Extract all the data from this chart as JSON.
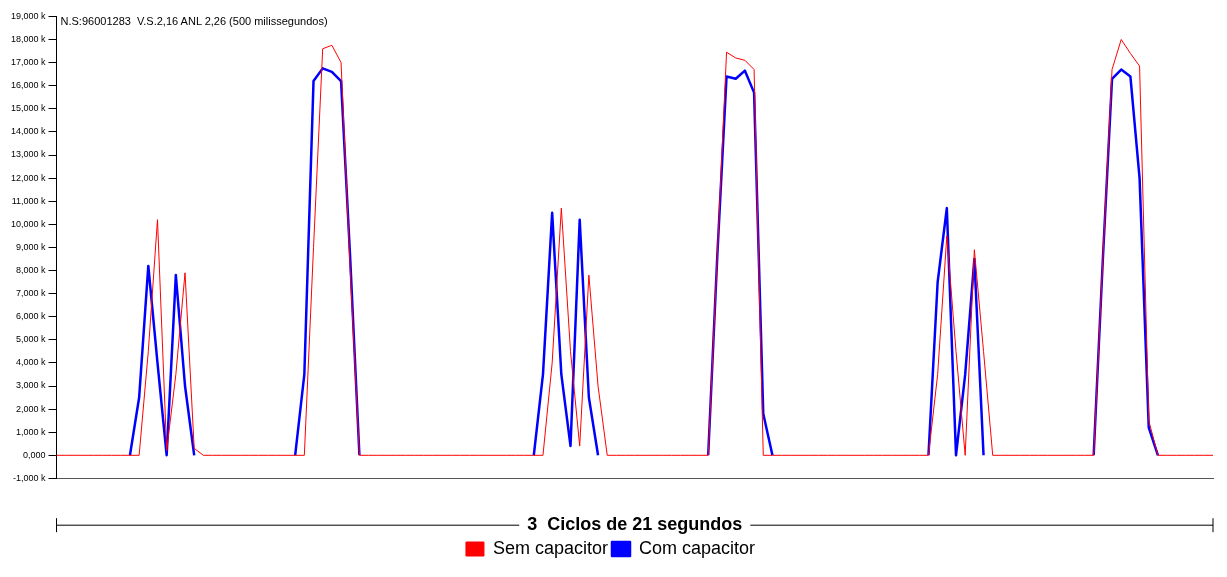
{
  "chart_data": {
    "type": "line",
    "title": "N.S:96001283  V.S.2,16 ANL 2,26 (500 milissegundos)",
    "xlabel": "3  Ciclos de 21 segundos",
    "categories": [
      null,
      null,
      null,
      null,
      null,
      null,
      null,
      null,
      null,
      null,
      null,
      null,
      null,
      null,
      null,
      null,
      null,
      null,
      null,
      null,
      null,
      null,
      null,
      null,
      null,
      null,
      null,
      null,
      null,
      null,
      null,
      null,
      null,
      null,
      null,
      null,
      null,
      null,
      null,
      null,
      null,
      null,
      null,
      null,
      null,
      null,
      null,
      null,
      null,
      null,
      null,
      null,
      null,
      null,
      null,
      null,
      null,
      null,
      null,
      null,
      null,
      null,
      null,
      null,
      null,
      null,
      null,
      null,
      null,
      null,
      null,
      null,
      null,
      null,
      null,
      null,
      null,
      null,
      null,
      null,
      null,
      null,
      null,
      null,
      null,
      null,
      null,
      null,
      null,
      null,
      null,
      null,
      null,
      null,
      null,
      null,
      null,
      null,
      null,
      null,
      null,
      null,
      null,
      null,
      null,
      null,
      null,
      null,
      null,
      null,
      null,
      null,
      null,
      null,
      null,
      null,
      null,
      null,
      null,
      null,
      null,
      null,
      null,
      null,
      null,
      null,
      null
    ],
    "series": [
      {
        "name": "Sem capacitor",
        "color": "#ff0000",
        "values": [
          0,
          0,
          0,
          0,
          0,
          0,
          0,
          0,
          0,
          0,
          4.5,
          10.2,
          0.2,
          3.5,
          7.9,
          0.3,
          0,
          0,
          0,
          0,
          0,
          0,
          0,
          0,
          0,
          0,
          0,
          0,
          9,
          17.6,
          17.75,
          17,
          8,
          0,
          0,
          0,
          0,
          0,
          0,
          0,
          0,
          0,
          0,
          0,
          0,
          0,
          0,
          0,
          0,
          0,
          0,
          0,
          0,
          0,
          4,
          10.7,
          4.5,
          0.4,
          7.8,
          3,
          0,
          0,
          0,
          0,
          0,
          0,
          0,
          0,
          0,
          0,
          0,
          0,
          8.7,
          17.45,
          17.2,
          17.1,
          16.7,
          0,
          0,
          0,
          0,
          0,
          0,
          0,
          0,
          0,
          0,
          0,
          0,
          0,
          0,
          0,
          0,
          0,
          0,
          0,
          3.5,
          9.5,
          4.5,
          0,
          8.9,
          4.5,
          0,
          0,
          0,
          0,
          0,
          0,
          0,
          0,
          0,
          0,
          0,
          0,
          8.5,
          16.7,
          18,
          17.4,
          16.85,
          1.5,
          0,
          0,
          0,
          0,
          0,
          0,
          0
        ]
      },
      {
        "name": "Com capacitor",
        "color": "#0000ff",
        "values": [
          null,
          null,
          null,
          null,
          null,
          null,
          null,
          null,
          0,
          2.5,
          8.2,
          4,
          0,
          7.8,
          3,
          0,
          null,
          null,
          null,
          null,
          null,
          null,
          null,
          null,
          null,
          null,
          0,
          3.5,
          16.2,
          16.75,
          16.6,
          16.2,
          8.5,
          0,
          null,
          null,
          null,
          null,
          null,
          null,
          null,
          null,
          null,
          null,
          null,
          null,
          null,
          null,
          null,
          null,
          null,
          null,
          0,
          3.5,
          10.5,
          3.5,
          0.4,
          10.2,
          2.5,
          0,
          null,
          null,
          null,
          null,
          null,
          null,
          null,
          null,
          null,
          null,
          null,
          0,
          8.7,
          16.4,
          16.3,
          16.65,
          15.7,
          1.8,
          0,
          null,
          null,
          null,
          null,
          null,
          null,
          null,
          null,
          null,
          null,
          null,
          null,
          null,
          null,
          null,
          null,
          0,
          7.5,
          10.7,
          0,
          3.5,
          8.5,
          0,
          null,
          null,
          null,
          null,
          null,
          null,
          null,
          null,
          null,
          null,
          null,
          0,
          8.5,
          16.3,
          16.7,
          16.4,
          12,
          1.2,
          0,
          null,
          null,
          null,
          null,
          null,
          null
        ]
      }
    ],
    "ylim": [
      -1,
      19
    ],
    "yticks": [
      {
        "value": -1,
        "label": "-1,000 k"
      },
      {
        "value": 0,
        "label": "0,000"
      },
      {
        "value": 1,
        "label": "1,000 k"
      },
      {
        "value": 2,
        "label": "2,000 k"
      },
      {
        "value": 3,
        "label": "3,000 k"
      },
      {
        "value": 4,
        "label": "4,000 k"
      },
      {
        "value": 5,
        "label": "5,000 k"
      },
      {
        "value": 6,
        "label": "6,000 k"
      },
      {
        "value": 7,
        "label": "7,000 k"
      },
      {
        "value": 8,
        "label": "8,000 k"
      },
      {
        "value": 9,
        "label": "9,000 k"
      },
      {
        "value": 10,
        "label": "10,000 k"
      },
      {
        "value": 11,
        "label": "11,000 k"
      },
      {
        "value": 12,
        "label": "12,000 k"
      },
      {
        "value": 13,
        "label": "13,000 k"
      },
      {
        "value": 14,
        "label": "14,000 k"
      },
      {
        "value": 15,
        "label": "15,000 k"
      },
      {
        "value": 16,
        "label": "16,000 k"
      },
      {
        "value": 17,
        "label": "17,000 k"
      },
      {
        "value": 18,
        "label": "18,000 k"
      },
      {
        "value": 19,
        "label": "19,000 k"
      }
    ],
    "grid": false,
    "legend": "bottom",
    "marker": "none",
    "line_style": "solid"
  }
}
